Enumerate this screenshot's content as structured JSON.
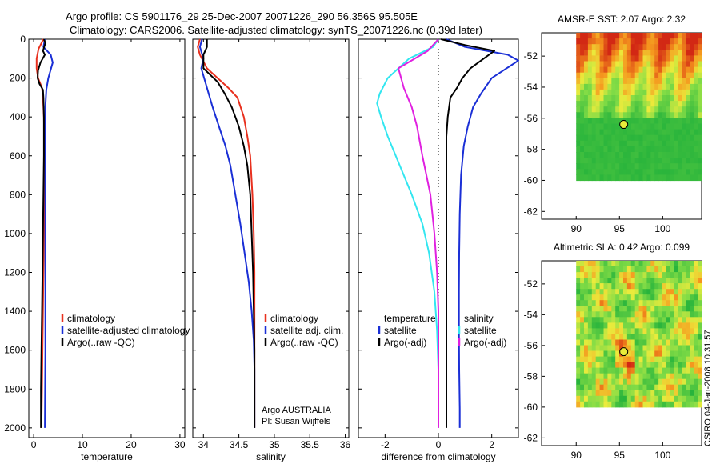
{
  "title_line1": "Argo profile: CS 5901176_29 25-Dec-2007 20071226_290 56.356S 95.505E",
  "title_line2": "Climatology: CARS2006. Satellite-adjusted climatology: synTS_20071226.nc (0.39d later)",
  "side_label": "CSIRO 04-Jan-2008 10:31:57",
  "colors": {
    "climatology": "#e8301e",
    "satellite": "#1a2fd6",
    "argo": "#000000",
    "sat_salinity": "#33e6f0",
    "argo_salinity": "#e020e0",
    "marker": "#e8ec3a"
  },
  "chart_data": [
    {
      "type": "line",
      "name": "temperature",
      "xlabel": "temperature",
      "ylabel": "",
      "xlim": [
        -1,
        31
      ],
      "ylim": [
        2050,
        0
      ],
      "xticks": [
        "0",
        "10",
        "20",
        "30"
      ],
      "yticks": [
        "0",
        "200",
        "400",
        "600",
        "800",
        "1000",
        "1200",
        "1400",
        "1600",
        "1800",
        "2000"
      ],
      "legend": [
        "climatology",
        "satellite-adjusted climatology",
        "Argo(..raw -QC)"
      ],
      "legend_position": "lower-right",
      "series": [
        {
          "name": "climatology",
          "color_key": "climatology",
          "points": [
            [
              2.0,
              0
            ],
            [
              1.0,
              50
            ],
            [
              0.6,
              100
            ],
            [
              0.6,
              150
            ],
            [
              0.9,
              200
            ],
            [
              1.7,
              250
            ],
            [
              1.9,
              300
            ],
            [
              2.1,
              400
            ],
            [
              2.2,
              600
            ],
            [
              2.2,
              800
            ],
            [
              2.1,
              1000
            ],
            [
              2.0,
              1200
            ],
            [
              1.9,
              1400
            ],
            [
              1.8,
              1600
            ],
            [
              1.7,
              1800
            ],
            [
              1.6,
              2000
            ]
          ]
        },
        {
          "name": "satellite-adjusted climatology",
          "color_key": "satellite",
          "points": [
            [
              2.3,
              0
            ],
            [
              2.0,
              40
            ],
            [
              3.5,
              80
            ],
            [
              3.9,
              120
            ],
            [
              3.0,
              200
            ],
            [
              2.6,
              260
            ],
            [
              2.4,
              350
            ],
            [
              2.4,
              500
            ],
            [
              2.4,
              800
            ],
            [
              2.4,
              1200
            ],
            [
              2.4,
              1600
            ],
            [
              2.3,
              2000
            ]
          ]
        },
        {
          "name": "Argo(..raw -QC)",
          "color_key": "argo",
          "points": [
            [
              2.1,
              0
            ],
            [
              2.4,
              20
            ],
            [
              1.9,
              60
            ],
            [
              2.3,
              80
            ],
            [
              1.4,
              120
            ],
            [
              0.9,
              160
            ],
            [
              0.8,
              200
            ],
            [
              1.2,
              230
            ],
            [
              1.9,
              260
            ],
            [
              2.0,
              300
            ],
            [
              2.1,
              400
            ],
            [
              2.1,
              600
            ],
            [
              2.0,
              800
            ],
            [
              1.9,
              1000
            ],
            [
              1.8,
              1200
            ],
            [
              1.7,
              1400
            ],
            [
              1.6,
              1600
            ],
            [
              1.5,
              1800
            ],
            [
              1.5,
              2000
            ]
          ]
        }
      ]
    },
    {
      "type": "line",
      "name": "salinity",
      "xlabel": "salinity",
      "ylabel": "",
      "xlim": [
        33.85,
        36.05
      ],
      "ylim": [
        2050,
        0
      ],
      "xticks": [
        "34",
        "34.5",
        "35",
        "35.5",
        "36"
      ],
      "legend": [
        "climatology",
        "satellite adj. clim.",
        "Argo(..raw -QC)"
      ],
      "legend_position": "lower-right",
      "annotations": [
        "Argo AUSTRALIA",
        "PI: Susan Wijffels"
      ],
      "series": [
        {
          "name": "climatology",
          "color_key": "climatology",
          "points": [
            [
              33.95,
              0
            ],
            [
              33.92,
              40
            ],
            [
              33.95,
              80
            ],
            [
              34.05,
              150
            ],
            [
              34.2,
              200
            ],
            [
              34.35,
              250
            ],
            [
              34.48,
              300
            ],
            [
              34.57,
              400
            ],
            [
              34.62,
              500
            ],
            [
              34.66,
              600
            ],
            [
              34.69,
              800
            ],
            [
              34.71,
              1000
            ],
            [
              34.72,
              1200
            ],
            [
              34.72,
              1400
            ],
            [
              34.72,
              1600
            ],
            [
              34.72,
              1800
            ],
            [
              34.72,
              2000
            ]
          ]
        },
        {
          "name": "satellite adj. clim.",
          "color_key": "satellite",
          "points": [
            [
              33.98,
              0
            ],
            [
              33.95,
              40
            ],
            [
              34.0,
              100
            ],
            [
              33.97,
              150
            ],
            [
              34.05,
              250
            ],
            [
              34.13,
              350
            ],
            [
              34.22,
              450
            ],
            [
              34.31,
              550
            ],
            [
              34.38,
              650
            ],
            [
              34.45,
              800
            ],
            [
              34.52,
              950
            ],
            [
              34.58,
              1100
            ],
            [
              34.64,
              1250
            ],
            [
              34.68,
              1400
            ],
            [
              34.71,
              1550
            ],
            [
              34.72,
              1700
            ],
            [
              34.72,
              1850
            ],
            [
              34.72,
              2000
            ]
          ]
        },
        {
          "name": "Argo(..raw -QC)",
          "color_key": "argo",
          "points": [
            [
              34.05,
              0
            ],
            [
              34.05,
              40
            ],
            [
              34.0,
              80
            ],
            [
              34.0,
              150
            ],
            [
              34.2,
              220
            ],
            [
              34.3,
              280
            ],
            [
              34.4,
              350
            ],
            [
              34.45,
              400
            ],
            [
              34.5,
              450
            ],
            [
              34.57,
              550
            ],
            [
              34.62,
              650
            ],
            [
              34.66,
              800
            ],
            [
              34.68,
              1000
            ],
            [
              34.7,
              1200
            ],
            [
              34.71,
              1400
            ],
            [
              34.72,
              1600
            ],
            [
              34.72,
              1800
            ],
            [
              34.72,
              2000
            ]
          ]
        }
      ]
    },
    {
      "type": "line",
      "name": "difference",
      "xlabel": "difference from climatology",
      "ylabel": "",
      "xlim": [
        -3,
        3
      ],
      "ylim": [
        2050,
        0
      ],
      "xticks": [
        "-2",
        "0",
        "2"
      ],
      "legend": [
        "temperature",
        "salinity",
        "satellite",
        "satellite",
        "Argo(-adj)",
        "Argo(-adj)"
      ],
      "legend_position": "lower-right",
      "series": [
        {
          "name": "satellite",
          "group": "temperature",
          "color_key": "satellite",
          "points": [
            [
              0.3,
              0
            ],
            [
              1.0,
              40
            ],
            [
              2.6,
              80
            ],
            [
              3.0,
              110
            ],
            [
              2.0,
              200
            ],
            [
              1.6,
              280
            ],
            [
              1.3,
              350
            ],
            [
              1.1,
              450
            ],
            [
              0.95,
              550
            ],
            [
              0.85,
              700
            ],
            [
              0.8,
              900
            ],
            [
              0.78,
              1100
            ],
            [
              0.77,
              1300
            ],
            [
              0.77,
              1500
            ],
            [
              0.78,
              1700
            ],
            [
              0.8,
              1900
            ],
            [
              0.8,
              2000
            ]
          ]
        },
        {
          "name": "Argo(-adj)",
          "group": "temperature",
          "color_key": "argo",
          "points": [
            [
              0.1,
              0
            ],
            [
              1.0,
              30
            ],
            [
              2.1,
              60
            ],
            [
              1.6,
              110
            ],
            [
              1.2,
              150
            ],
            [
              0.9,
              200
            ],
            [
              0.7,
              250
            ],
            [
              0.45,
              300
            ],
            [
              0.35,
              400
            ],
            [
              0.3,
              500
            ],
            [
              0.3,
              600
            ],
            [
              0.3,
              800
            ],
            [
              0.3,
              1000
            ],
            [
              0.3,
              1200
            ],
            [
              0.3,
              1400
            ],
            [
              0.3,
              1600
            ],
            [
              0.3,
              1800
            ],
            [
              0.3,
              2000
            ]
          ]
        },
        {
          "name": "satellite",
          "group": "salinity",
          "color_key": "sat_salinity",
          "points": [
            [
              0.0,
              0
            ],
            [
              -0.2,
              40
            ],
            [
              -1.1,
              100
            ],
            [
              -1.9,
              200
            ],
            [
              -2.2,
              280
            ],
            [
              -2.3,
              330
            ],
            [
              -2.15,
              400
            ],
            [
              -1.9,
              500
            ],
            [
              -1.6,
              600
            ],
            [
              -1.3,
              700
            ],
            [
              -1.0,
              800
            ],
            [
              -0.6,
              950
            ],
            [
              -0.35,
              1100
            ],
            [
              -0.15,
              1300
            ],
            [
              -0.05,
              1500
            ],
            [
              0.0,
              1700
            ],
            [
              0.0,
              1900
            ],
            [
              0.0,
              2000
            ]
          ]
        },
        {
          "name": "Argo(-adj)",
          "group": "salinity",
          "color_key": "argo_salinity",
          "points": [
            [
              0.0,
              0
            ],
            [
              -0.4,
              60
            ],
            [
              -1.5,
              150
            ],
            [
              -1.3,
              250
            ],
            [
              -1.0,
              350
            ],
            [
              -0.8,
              450
            ],
            [
              -0.6,
              600
            ],
            [
              -0.45,
              700
            ],
            [
              -0.3,
              800
            ],
            [
              -0.15,
              1000
            ],
            [
              -0.05,
              1200
            ],
            [
              0.0,
              1400
            ],
            [
              0.0,
              1600
            ],
            [
              0.0,
              1800
            ],
            [
              0.0,
              2000
            ]
          ]
        }
      ]
    },
    {
      "type": "heatmap",
      "name": "sst_map",
      "title": "AMSR-E SST: 2.07 Argo: 2.32",
      "xlim": [
        86,
        104.5
      ],
      "ylim": [
        -62.5,
        -50.5
      ],
      "xticks": [
        "90",
        "95",
        "100"
      ],
      "yticks": [
        "-52",
        "-54",
        "-56",
        "-58",
        "-60",
        "-62"
      ],
      "data_extent": {
        "lon": [
          90,
          104.5
        ],
        "lat": [
          -60,
          -50.5
        ]
      },
      "argo_position": {
        "lon": 95.5,
        "lat": -56.4
      }
    },
    {
      "type": "heatmap",
      "name": "sla_map",
      "title": "Altimetric SLA: 0.42 Argo: 0.099",
      "xlim": [
        86,
        104.5
      ],
      "ylim": [
        -62.5,
        -50.5
      ],
      "xticks": [
        "90",
        "95",
        "100"
      ],
      "yticks": [
        "-52",
        "-54",
        "-56",
        "-58",
        "-60",
        "-62"
      ],
      "data_extent": {
        "lon": [
          90,
          104.5
        ],
        "lat": [
          -60,
          -50.5
        ]
      },
      "argo_position": {
        "lon": 95.5,
        "lat": -56.4
      }
    }
  ]
}
